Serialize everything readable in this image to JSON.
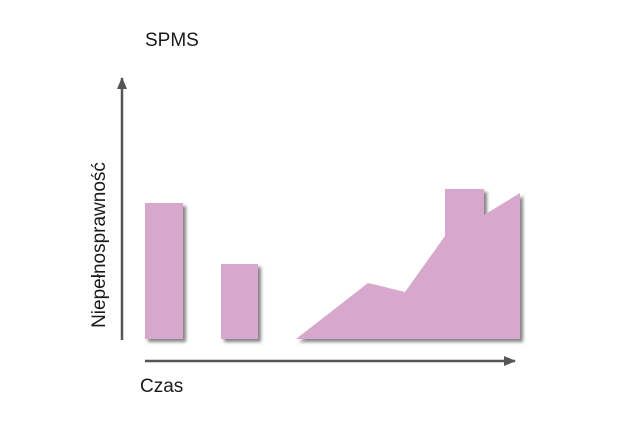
{
  "diagram": {
    "title": "SPMS",
    "x_axis_label": "Czas",
    "y_axis_label": "Niepełnosprawność",
    "fill_color": "#d8a8cc",
    "shadow_color": "#5a5a5a",
    "axis_color": "#555555",
    "shapes": [
      {
        "name": "relapse-bar-1",
        "kind": "relapse episode"
      },
      {
        "name": "relapse-bar-2",
        "kind": "relapse episode"
      },
      {
        "name": "progression-area",
        "kind": "progressive disability"
      }
    ]
  }
}
